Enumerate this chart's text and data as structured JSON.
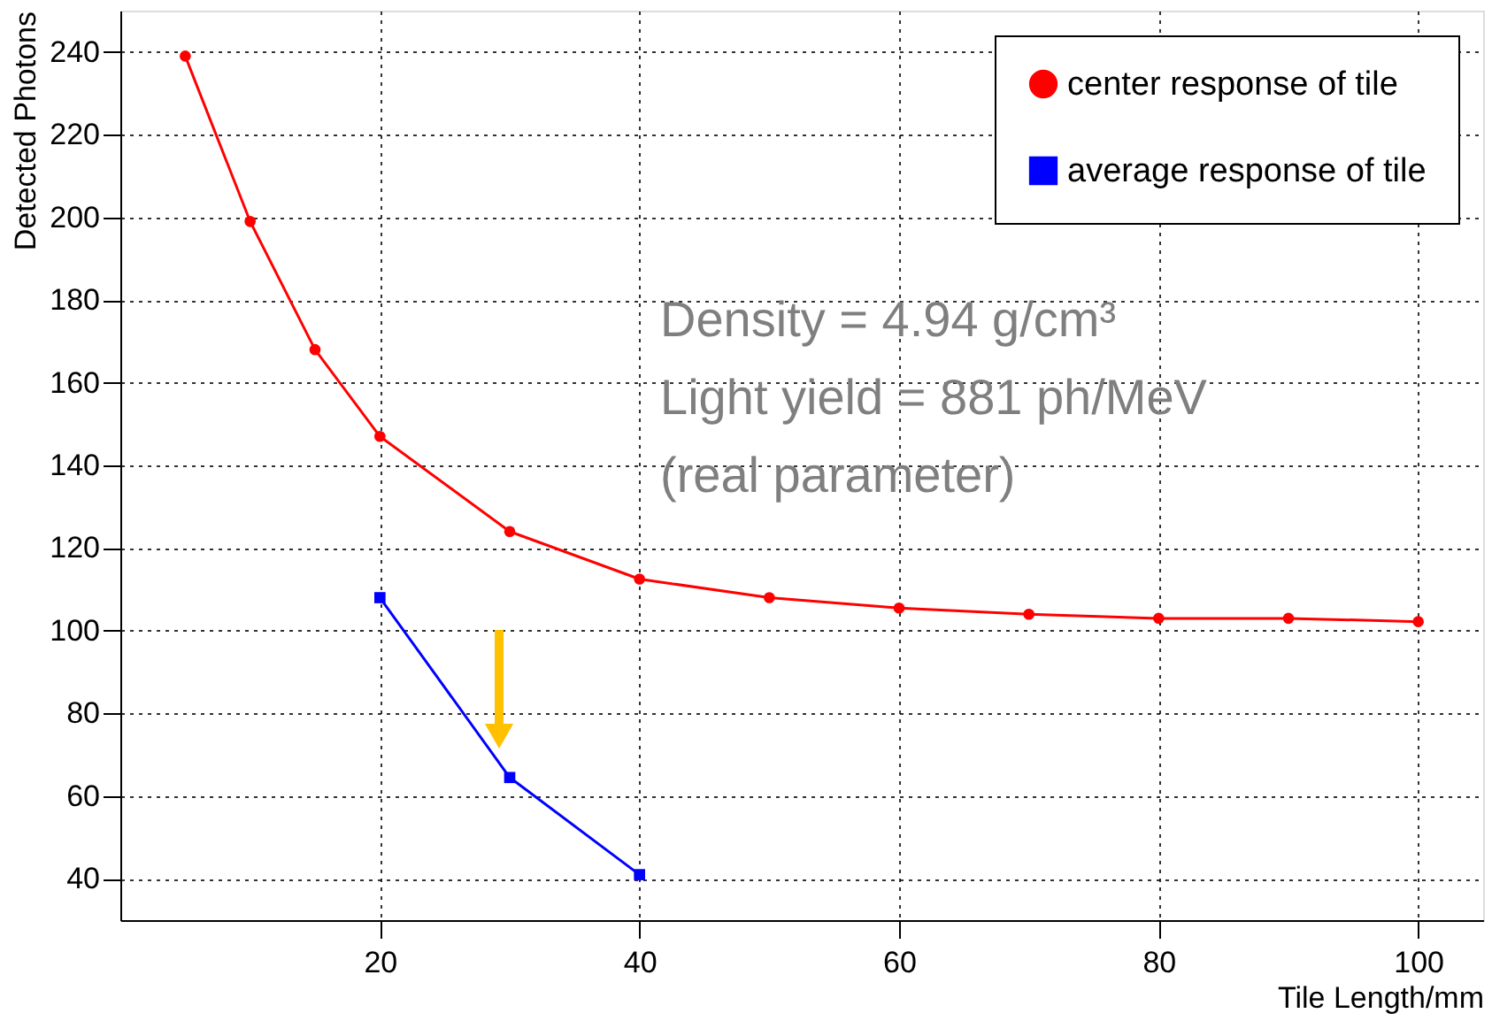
{
  "chart_data": {
    "type": "line",
    "xlabel": "Tile Length/mm",
    "ylabel": "Detected Photons",
    "xlim": [
      0,
      105
    ],
    "xticks": [
      20,
      40,
      60,
      80,
      100
    ],
    "ylim": [
      30,
      250
    ],
    "yticks": [
      40,
      60,
      80,
      100,
      120,
      140,
      160,
      180,
      200,
      220,
      240
    ],
    "grid": true,
    "legend": "top right",
    "line_style": "solid",
    "annotations": [
      "Density = 4.94 g/cm³",
      "Light yield = 881 ph/MeV",
      "(real parameter)"
    ],
    "series": [
      {
        "name": "center response of tile",
        "color": "#ff0000",
        "marker": "circle",
        "x": [
          5,
          10,
          15,
          20,
          30,
          40,
          50,
          60,
          70,
          80,
          90,
          100
        ],
        "values": [
          239,
          199,
          168,
          147,
          124,
          112.5,
          108,
          105.5,
          104,
          103,
          103,
          102.2
        ]
      },
      {
        "name": "average response of tile",
        "color": "#0000ff",
        "marker": "square",
        "x": [
          20,
          30,
          40
        ],
        "values": [
          108,
          64.5,
          41
        ]
      }
    ]
  }
}
